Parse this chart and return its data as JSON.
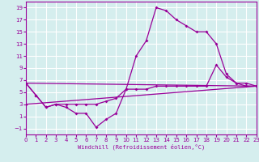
{
  "line1_x": [
    0,
    1,
    2,
    3,
    4,
    5,
    6,
    7,
    8,
    9,
    10,
    11,
    12,
    13,
    14,
    15,
    16,
    17,
    18,
    19,
    20,
    21,
    22,
    23
  ],
  "line1_y": [
    6.5,
    4.5,
    2.5,
    3.0,
    2.5,
    1.5,
    1.5,
    -0.8,
    0.5,
    1.5,
    5.5,
    11.0,
    13.5,
    19.0,
    18.5,
    17.0,
    16.0,
    15.0,
    15.0,
    13.0,
    8.0,
    6.5,
    6.5,
    6.0
  ],
  "line2_x": [
    0,
    1,
    2,
    3,
    4,
    5,
    6,
    7,
    8,
    9,
    10,
    11,
    12,
    13,
    14,
    15,
    16,
    17,
    18,
    19,
    20,
    21,
    22,
    23
  ],
  "line2_y": [
    6.5,
    4.5,
    2.5,
    3.0,
    3.0,
    3.0,
    3.0,
    3.0,
    3.5,
    4.0,
    5.5,
    5.5,
    5.5,
    6.0,
    6.0,
    6.0,
    6.0,
    6.0,
    6.0,
    9.5,
    7.5,
    6.5,
    6.0,
    6.0
  ],
  "line3_x": [
    0,
    23
  ],
  "line3_y": [
    3.0,
    6.0
  ],
  "line4_x": [
    0,
    23
  ],
  "line4_y": [
    6.5,
    6.0
  ],
  "color": "#990099",
  "marker": "D",
  "markersize": 2,
  "linewidth": 0.9,
  "xlim": [
    0,
    23
  ],
  "ylim": [
    -2,
    20
  ],
  "yticks": [
    -1,
    1,
    3,
    5,
    7,
    9,
    11,
    13,
    15,
    17,
    19
  ],
  "xticks": [
    0,
    1,
    2,
    3,
    4,
    5,
    6,
    7,
    8,
    9,
    10,
    11,
    12,
    13,
    14,
    15,
    16,
    17,
    18,
    19,
    20,
    21,
    22,
    23
  ],
  "xlabel": "Windchill (Refroidissement éolien,°C)",
  "bg_color": "#d5eeee",
  "grid_color": "#b0d8d8"
}
